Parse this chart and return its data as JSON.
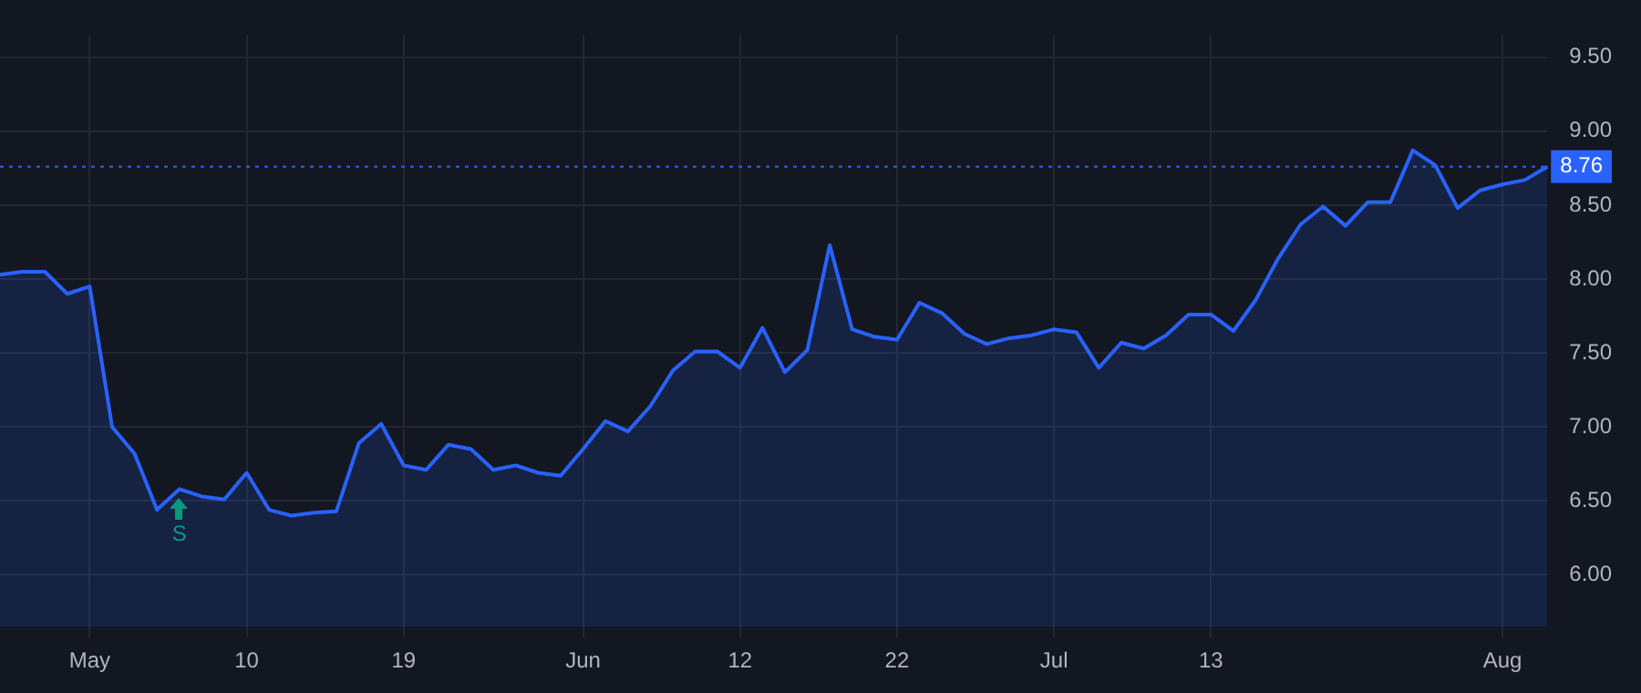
{
  "chart_data": {
    "type": "area",
    "categories": [
      null,
      null,
      null,
      null,
      "May",
      null,
      null,
      null,
      null,
      null,
      null,
      "10",
      null,
      null,
      null,
      null,
      null,
      null,
      "19",
      null,
      null,
      null,
      null,
      null,
      null,
      null,
      "Jun",
      null,
      null,
      null,
      null,
      null,
      null,
      "12",
      null,
      null,
      null,
      null,
      null,
      null,
      "22",
      null,
      null,
      null,
      null,
      null,
      null,
      "Jul",
      null,
      null,
      null,
      null,
      null,
      null,
      "13",
      null,
      null,
      null,
      null,
      null,
      null,
      null,
      null,
      null,
      null,
      null,
      null,
      "Aug",
      null,
      null
    ],
    "series": [
      {
        "color": "#2962ff",
        "values": [
          8.03,
          8.05,
          8.05,
          7.9,
          7.95,
          7.0,
          6.82,
          6.44,
          6.58,
          6.53,
          6.51,
          6.69,
          6.44,
          6.4,
          6.42,
          6.43,
          6.89,
          7.02,
          6.74,
          6.71,
          6.88,
          6.85,
          6.71,
          6.74,
          6.69,
          6.67,
          6.85,
          7.04,
          6.97,
          7.14,
          7.38,
          7.51,
          7.51,
          7.4,
          7.67,
          7.37,
          7.52,
          8.23,
          7.66,
          7.61,
          7.59,
          7.84,
          7.77,
          7.63,
          7.56,
          7.6,
          7.62,
          7.66,
          7.64,
          7.4,
          7.57,
          7.53,
          7.62,
          7.76,
          7.76,
          7.65,
          7.86,
          8.14,
          8.37,
          8.49,
          8.36,
          8.52,
          8.52,
          8.87,
          8.77,
          8.48,
          8.6,
          8.64,
          8.67,
          8.76
        ]
      }
    ],
    "ylim": [
      5.65,
      9.65
    ],
    "yticks": [
      {
        "value": 6,
        "label": "6.00"
      },
      {
        "value": 6.5,
        "label": "6.50"
      },
      {
        "value": 7,
        "label": "7.00"
      },
      {
        "value": 7.5,
        "label": "7.50"
      },
      {
        "value": 8,
        "label": "8.00"
      },
      {
        "value": 8.5,
        "label": "8.50"
      },
      {
        "value": 9,
        "label": "9.00"
      },
      {
        "value": 9.5,
        "label": "9.50"
      }
    ],
    "ref_lines": [
      {
        "axis": "y",
        "value": 8.76,
        "label": "8.76",
        "color": "#2962ff",
        "line_style": "dotted"
      }
    ],
    "annotations": [
      {
        "text": "S",
        "y": 6.58
      }
    ],
    "grid": true,
    "legend": false,
    "marker": "none",
    "line_style": "solid"
  }
}
